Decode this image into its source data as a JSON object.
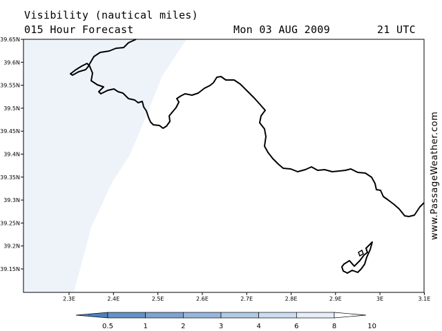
{
  "header": {
    "title": "Visibility (nautical miles)",
    "subtitle": "015 Hour Forecast",
    "date": "Mon 03 AUG 2009",
    "time": "21 UTC"
  },
  "watermark": "www.PassageWeather.com",
  "map": {
    "lat_labels": [
      "39.65N",
      "39.6N",
      "39.55N",
      "39.5N",
      "39.45N",
      "39.4N",
      "39.35N",
      "39.3N",
      "39.25N",
      "39.2N",
      "39.15N"
    ],
    "lon_labels": [
      "2.3E",
      "2.4E",
      "2.5E",
      "2.6E",
      "2.7E",
      "2.8E",
      "2.9E",
      "3E",
      "3.1E"
    ],
    "colors": {
      "reduced_visibility": "#eef3fa",
      "coastline": "#000000",
      "frame": "#000000"
    }
  },
  "colorbar": {
    "labels": [
      "0.5",
      "1",
      "2",
      "3",
      "4",
      "6",
      "8",
      "10"
    ],
    "colors": [
      "#4f80bd",
      "#6492c8",
      "#7da3d2",
      "#97b6dc",
      "#b2c9e6",
      "#cddcef",
      "#e6eef8",
      "#ffffff"
    ]
  }
}
